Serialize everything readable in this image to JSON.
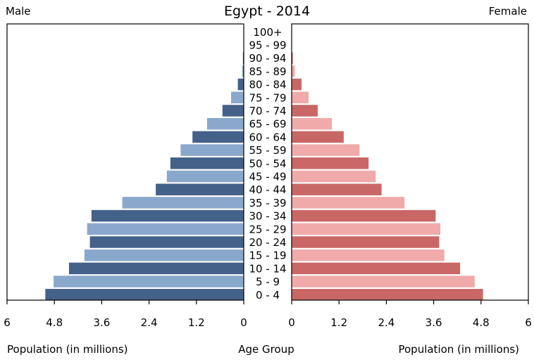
{
  "chart_data": {
    "type": "bar",
    "title": "Egypt - 2014",
    "left_label": "Male",
    "right_label": "Female",
    "xlabel_left": "Population (in millions)",
    "xlabel_center": "Age Group",
    "xlabel_right": "Population (in millions)",
    "xlim": [
      0,
      6
    ],
    "ticks_left": [
      "6",
      "4.8",
      "3.6",
      "2.4",
      "1.2",
      "0"
    ],
    "ticks_right": [
      "0",
      "1.2",
      "2.4",
      "3.6",
      "4.8",
      "6"
    ],
    "tick_values_left": [
      6,
      4.8,
      3.6,
      2.4,
      1.2,
      0
    ],
    "tick_values_right": [
      0,
      1.2,
      2.4,
      3.6,
      4.8,
      6
    ],
    "categories": [
      "100+",
      "95 - 99",
      "90 - 94",
      "85 - 89",
      "80 - 84",
      "75 - 79",
      "70 - 74",
      "65 - 69",
      "60 - 64",
      "55 - 59",
      "50 - 54",
      "45 - 49",
      "40 - 44",
      "35 - 39",
      "30 - 34",
      "25 - 29",
      "20 - 24",
      "15 - 19",
      "10 - 14",
      "5 - 9",
      "0 - 4"
    ],
    "series": [
      {
        "name": "Male",
        "colors": [
          "#44618a",
          "#8aa8cc"
        ],
        "values": [
          0.0,
          0.005,
          0.02,
          0.04,
          0.15,
          0.32,
          0.54,
          0.93,
          1.3,
          1.6,
          1.86,
          1.95,
          2.23,
          3.08,
          3.86,
          3.97,
          3.9,
          4.04,
          4.43,
          4.82,
          5.03
        ]
      },
      {
        "name": "Female",
        "colors": [
          "#c96767",
          "#f0aaaa"
        ],
        "values": [
          0.0,
          0.006,
          0.03,
          0.08,
          0.25,
          0.43,
          0.66,
          1.02,
          1.32,
          1.72,
          1.95,
          2.13,
          2.28,
          2.86,
          3.65,
          3.77,
          3.74,
          3.87,
          4.27,
          4.64,
          4.85
        ]
      }
    ]
  }
}
